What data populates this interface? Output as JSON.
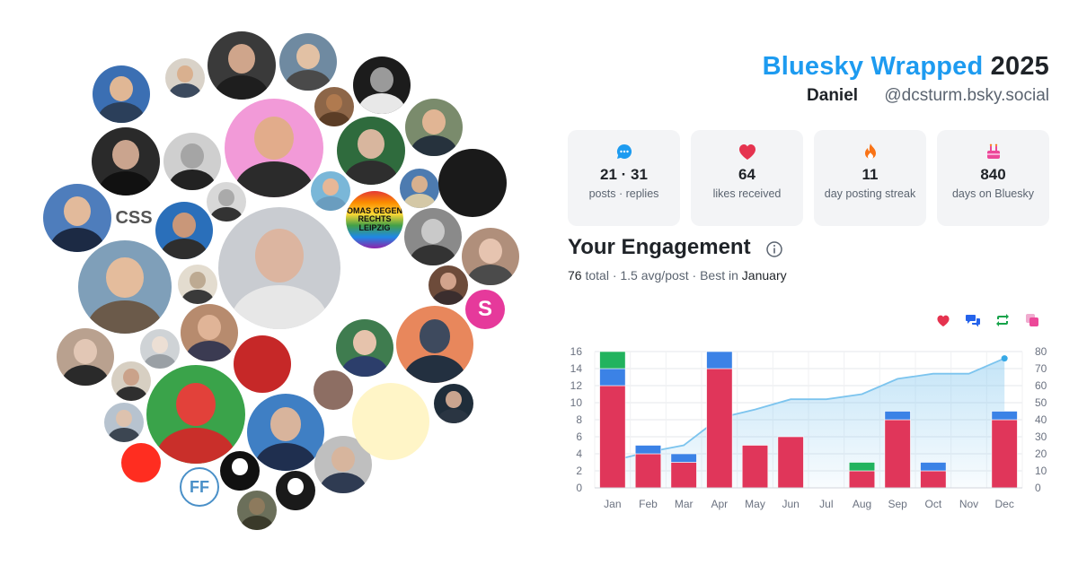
{
  "header": {
    "brand": "Bluesky Wrapped",
    "year": "2025",
    "name": "Daniel",
    "handle": "@dcsturm.bsky.social"
  },
  "stats": [
    {
      "icon": "speech-bubble-icon",
      "value": "21 · 31",
      "label": "posts · replies",
      "color": "#1d9bf0"
    },
    {
      "icon": "heart-icon",
      "value": "64",
      "label": "likes received",
      "color": "#e5334f"
    },
    {
      "icon": "flame-icon",
      "value": "11",
      "label": "day posting streak",
      "color": "#f97316"
    },
    {
      "icon": "cake-icon",
      "value": "840",
      "label": "days on Bluesky",
      "color": "#ec4899"
    }
  ],
  "engagement": {
    "title": "Your Engagement",
    "total_value": "76",
    "total_label": "total",
    "avg_text": "· 1.5 avg/post · Best in",
    "best_month": "January"
  },
  "legend_icons": [
    {
      "name": "heart-icon",
      "color": "#e5334f"
    },
    {
      "name": "replies-icon",
      "color": "#2563eb"
    },
    {
      "name": "repost-icon",
      "color": "#16a34a"
    },
    {
      "name": "quote-icon",
      "color": "#ec4899"
    }
  ],
  "cloud_badges": {
    "css": "CSS",
    "omas": "OMAS GEGEN RECHTS LEIPZIG",
    "ff": "FF",
    "s": "S"
  },
  "chart_data": {
    "type": "bar",
    "stacked": true,
    "categories": [
      "Jan",
      "Feb",
      "Mar",
      "Apr",
      "May",
      "Jun",
      "Jul",
      "Aug",
      "Sep",
      "Oct",
      "Nov",
      "Dec"
    ],
    "series": [
      {
        "color": "#e0365a",
        "values": [
          12,
          4,
          3,
          14,
          5,
          6,
          0,
          2,
          8,
          2,
          0,
          8
        ]
      },
      {
        "color": "#3b82e6",
        "values": [
          2,
          1,
          1,
          2,
          0,
          0,
          0,
          0,
          1,
          1,
          0,
          1
        ]
      },
      {
        "color": "#22b35e",
        "values": [
          2,
          0,
          0,
          0,
          0,
          0,
          0,
          1,
          0,
          0,
          0,
          0
        ]
      }
    ],
    "cumulative": {
      "color": "#7cc4ee",
      "values": [
        16,
        21,
        25,
        41,
        46,
        52,
        52,
        55,
        64,
        67,
        67,
        76
      ]
    },
    "ylim": [
      0,
      16
    ],
    "y_ticks": [
      0,
      2,
      4,
      6,
      8,
      10,
      12,
      14,
      16
    ],
    "y2lim": [
      0,
      80
    ],
    "y2_ticks": [
      0,
      10,
      20,
      30,
      40,
      50,
      60,
      70,
      80
    ],
    "grid": true,
    "legend": "top-right"
  }
}
